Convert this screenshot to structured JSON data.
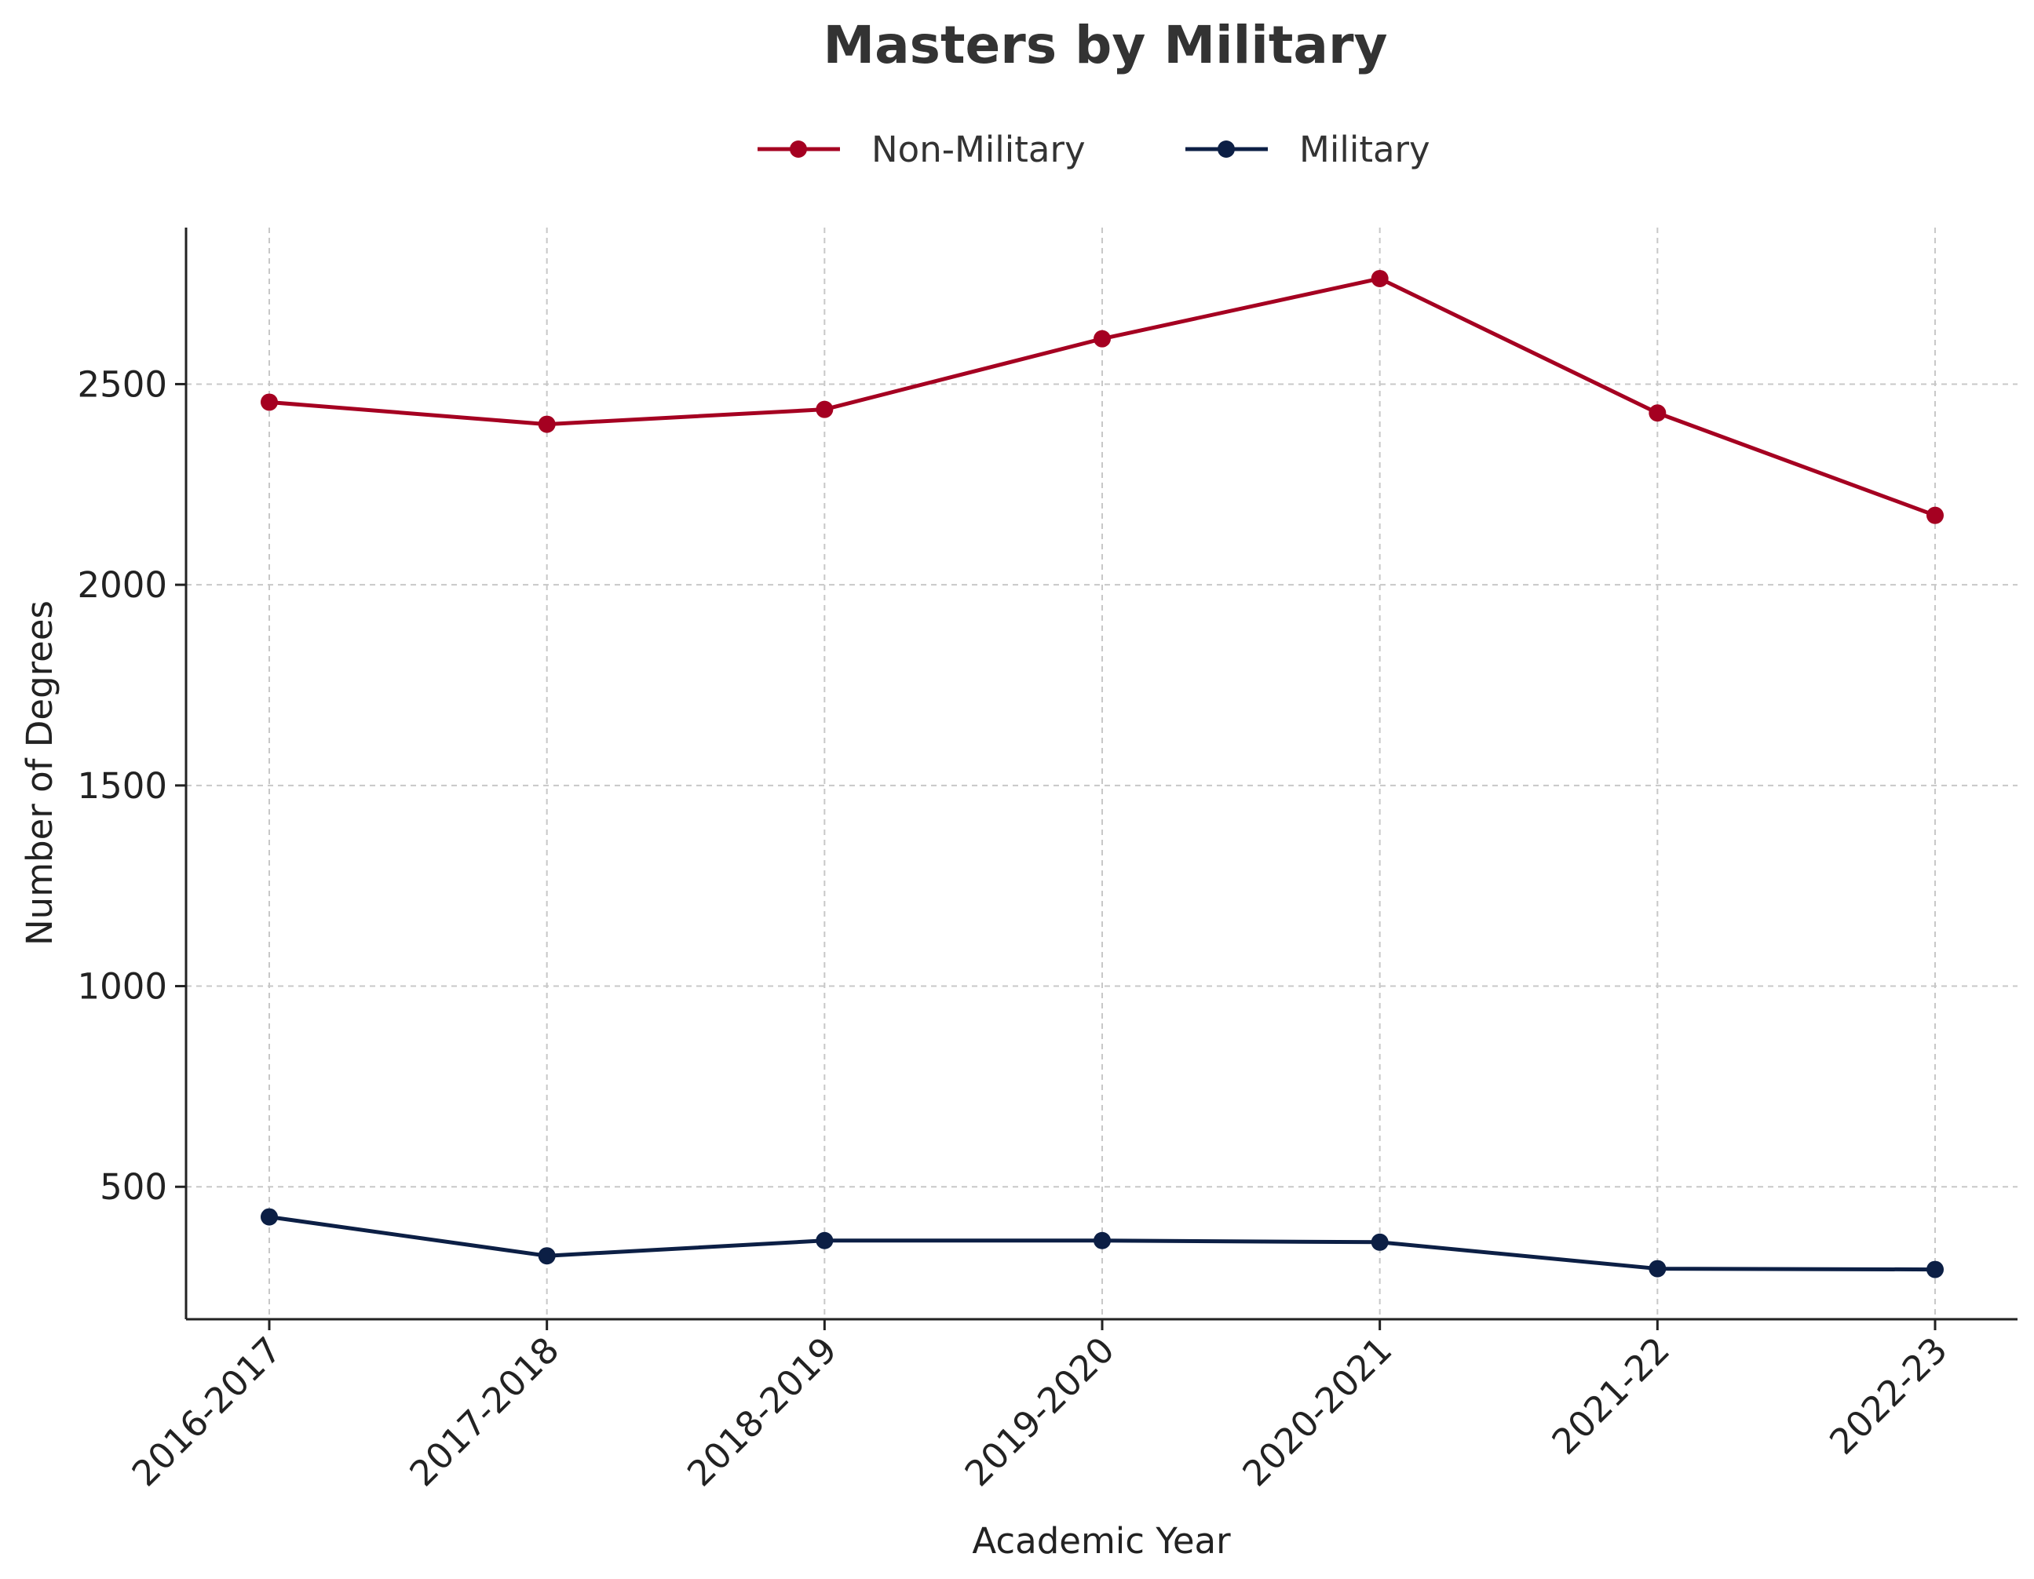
{
  "chart_data": {
    "type": "line",
    "title": "Masters by Military",
    "xlabel": "Academic Year",
    "ylabel": "Number of Degrees",
    "categories": [
      "2016-2017",
      "2017-2018",
      "2018-2019",
      "2019-2020",
      "2020-2021",
      "2021-22",
      "2022-23"
    ],
    "yticks": [
      500,
      1000,
      1500,
      2000,
      2500
    ],
    "ylim": [
      170,
      2890
    ],
    "grid": true,
    "legend_position": "top-center",
    "series": [
      {
        "name": "Non-Military",
        "color": "#a50021",
        "values": [
          2455,
          2400,
          2437,
          2613,
          2763,
          2428,
          2173
        ]
      },
      {
        "name": "Military",
        "color": "#0c1f45",
        "values": [
          425,
          328,
          366,
          366,
          362,
          296,
          294
        ]
      }
    ]
  }
}
